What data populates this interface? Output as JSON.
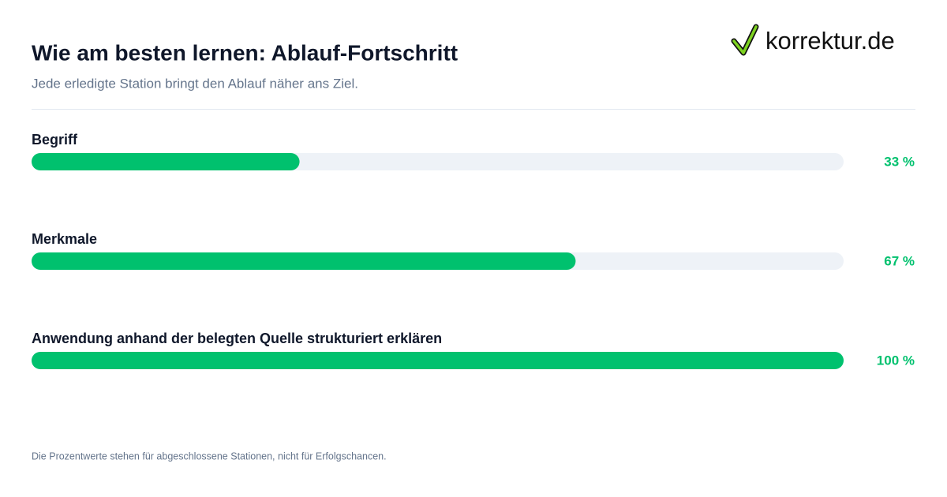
{
  "brand": "korrektur.de",
  "chart_data": {
    "type": "bar",
    "orientation": "horizontal",
    "title": "Wie am besten lernen: Ablauf-Fortschritt",
    "subtitle": "Jede erledigte Station bringt den Ablauf näher ans Ziel.",
    "categories": [
      "Begriff",
      "Merkmale",
      "Anwendung anhand der belegten Quelle strukturiert erklären"
    ],
    "values": [
      33,
      67,
      100
    ],
    "value_labels": [
      "33 %",
      "67 %",
      "100 %"
    ],
    "color": "#00c16e",
    "xlim": [
      0,
      100
    ],
    "note": "Die Prozentwerte stehen für abgeschlossene Stationen, nicht für Erfolgschancen."
  }
}
